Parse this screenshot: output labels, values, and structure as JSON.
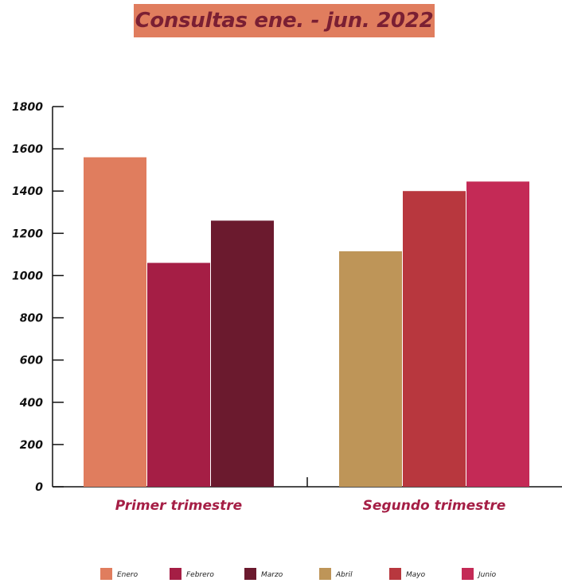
{
  "title": "Consultas ene. - jun. 2022",
  "colors": {
    "title_bg": "#e07d5e",
    "title_text": "#7a1f33",
    "category_label": "#a51e45"
  },
  "chart_data": {
    "type": "bar",
    "categories": [
      "Primer trimestre",
      "Segundo trimestre"
    ],
    "groups": [
      {
        "category": "Primer trimestre",
        "bars": [
          {
            "name": "Enero",
            "value": 1560,
            "color": "#e07d5e"
          },
          {
            "name": "Febrero",
            "value": 1060,
            "color": "#a51e45"
          },
          {
            "name": "Marzo",
            "value": 1260,
            "color": "#6b1a2e"
          }
        ]
      },
      {
        "category": "Segundo trimestre",
        "bars": [
          {
            "name": "Abril",
            "value": 1115,
            "color": "#be9558"
          },
          {
            "name": "Mayo",
            "value": 1400,
            "color": "#b8373e"
          },
          {
            "name": "Junio",
            "value": 1445,
            "color": "#c42a56"
          }
        ]
      }
    ],
    "legend": [
      {
        "name": "Enero",
        "color": "#e07d5e"
      },
      {
        "name": "Febrero",
        "color": "#a51e45"
      },
      {
        "name": "Marzo",
        "color": "#6b1a2e"
      },
      {
        "name": "Abril",
        "color": "#be9558"
      },
      {
        "name": "Mayo",
        "color": "#b8373e"
      },
      {
        "name": "Junio",
        "color": "#c42a56"
      }
    ],
    "ylim": [
      0,
      1800
    ],
    "yticks": [
      0,
      200,
      400,
      600,
      800,
      1000,
      1200,
      1400,
      1600,
      1800
    ],
    "legend_position": "bottom",
    "grid": false
  }
}
